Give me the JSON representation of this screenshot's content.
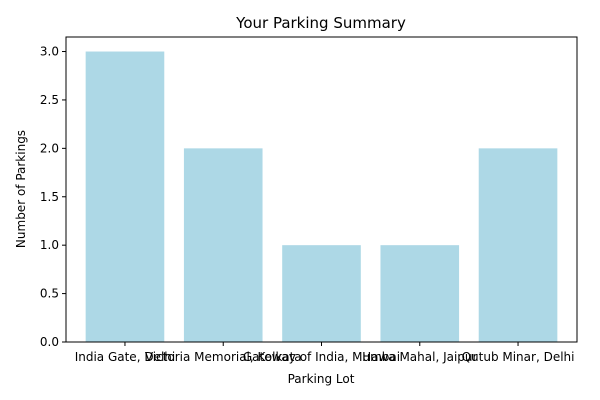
{
  "chart_data": {
    "type": "bar",
    "title": "Your Parking Summary",
    "xlabel": "Parking Lot",
    "ylabel": "Number of Parkings",
    "categories": [
      "India Gate, Delhi",
      "Victoria Memorial, Kolkata",
      "Gateway of India, Mumbai",
      "Hawa Mahal,  Jaipur",
      "Qutub Minar, Delhi"
    ],
    "values": [
      3,
      2,
      1,
      1,
      2
    ],
    "ylim": [
      0,
      3.15
    ],
    "yticks": [
      "0.0",
      "0.5",
      "1.0",
      "1.5",
      "2.0",
      "2.5",
      "3.0"
    ],
    "bar_color": "#add8e6",
    "grid": false,
    "legend": "none"
  }
}
